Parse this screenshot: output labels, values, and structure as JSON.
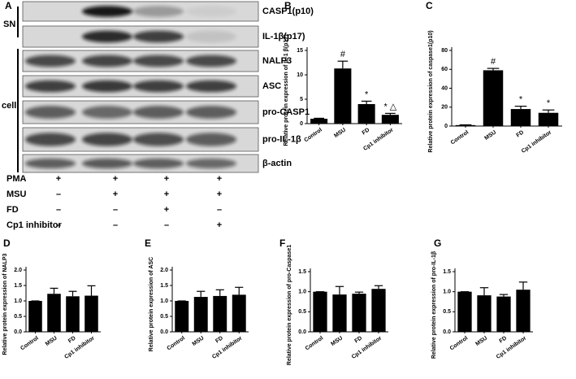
{
  "blot": {
    "panel": "A",
    "groups": [
      "SN",
      "cell"
    ],
    "rows": [
      "CASP1(p10)",
      "IL-1β(p17)",
      "NALP3",
      "ASC",
      "pro-CASP1",
      "pro-IL-1β",
      "β-actin"
    ],
    "conditions": [
      {
        "name": "PMA",
        "signs": [
          "+",
          "+",
          "+",
          "+"
        ]
      },
      {
        "name": "MSU",
        "signs": [
          "–",
          "+",
          "+",
          "+"
        ]
      },
      {
        "name": "FD",
        "signs": [
          "–",
          "–",
          "+",
          "–"
        ]
      },
      {
        "name": "Cp1 inhibitor",
        "signs": [
          "–",
          "–",
          "–",
          "+"
        ]
      }
    ]
  },
  "chart_data": [
    {
      "type": "bar",
      "panel": "B",
      "ylabel": "Relative protein expression of IL-1 β(p17)",
      "color": "#000000",
      "categories": [
        "Control",
        "MSU",
        "FD",
        "Cp1 inhibitor"
      ],
      "values": [
        1,
        11.3,
        4,
        1.8
      ],
      "errors": [
        0.1,
        1.5,
        0.6,
        0.3
      ],
      "annotations": [
        null,
        "#",
        "*",
        "* △"
      ],
      "ylim": [
        0,
        15
      ],
      "yticks": [
        0,
        5,
        10,
        15
      ]
    },
    {
      "type": "bar",
      "panel": "C",
      "ylabel": "Relative protein expression of caspase1(p10)",
      "color": "#000000",
      "categories": [
        "Control",
        "MSU",
        "FD",
        "Cp1 inhibitor"
      ],
      "values": [
        1,
        59,
        18,
        14
      ],
      "errors": [
        0.3,
        2,
        3,
        3
      ],
      "annotations": [
        null,
        "#",
        "*",
        "*"
      ],
      "ylim": [
        0,
        80
      ],
      "yticks": [
        0,
        20,
        40,
        60,
        80
      ]
    },
    {
      "type": "bar",
      "panel": "D",
      "ylabel": "Relative protein expression of NALP3",
      "color": "#000000",
      "categories": [
        "Control",
        "MSU",
        "FD",
        "Cp1 inhibitor"
      ],
      "values": [
        1,
        1.23,
        1.15,
        1.17
      ],
      "errors": [
        0,
        0.18,
        0.16,
        0.32
      ],
      "ylim": [
        0,
        2
      ],
      "yticks": [
        {
          "value": 0,
          "label": "0.0"
        },
        0.5,
        {
          "value": 1,
          "label": "1.0"
        },
        1.5,
        {
          "value": 2,
          "label": "2.0"
        }
      ]
    },
    {
      "type": "bar",
      "panel": "E",
      "ylabel": "Relative protein expression of ASC",
      "color": "#000000",
      "categories": [
        "Control",
        "MSU",
        "FD",
        "Cp1 inhibitor"
      ],
      "values": [
        1,
        1.13,
        1.16,
        1.2
      ],
      "errors": [
        0,
        0.18,
        0.2,
        0.24
      ],
      "ylim": [
        0,
        2
      ],
      "yticks": [
        {
          "value": 0,
          "label": "0.0"
        },
        0.5,
        {
          "value": 1,
          "label": "1.0"
        },
        1.5,
        {
          "value": 2,
          "label": "2.0"
        }
      ]
    },
    {
      "type": "bar",
      "panel": "F",
      "ylabel": "Relative protein expression of pro-Caspase1",
      "color": "#000000",
      "categories": [
        "Control",
        "MSU",
        "FD",
        "Cp1 inhibitor"
      ],
      "values": [
        1,
        0.93,
        0.95,
        1.07
      ],
      "errors": [
        0,
        0.2,
        0.04,
        0.08
      ],
      "ylim": [
        0,
        1.5
      ],
      "yticks": [
        {
          "value": 0,
          "label": "0.0"
        },
        0.5,
        {
          "value": 1,
          "label": "1.0"
        },
        1.5
      ]
    },
    {
      "type": "bar",
      "panel": "G",
      "ylabel": "Relative protein expression of pro-IL-1β",
      "color": "#000000",
      "categories": [
        "Control",
        "MSU",
        "FD",
        "Cp1 inhibitor"
      ],
      "values": [
        1,
        0.91,
        0.88,
        1.05
      ],
      "errors": [
        0,
        0.19,
        0.05,
        0.19
      ],
      "ylim": [
        0,
        1.5
      ],
      "yticks": [
        {
          "value": 0,
          "label": "0.0"
        },
        0.5,
        {
          "value": 1,
          "label": "1.0"
        },
        1.5
      ]
    }
  ]
}
